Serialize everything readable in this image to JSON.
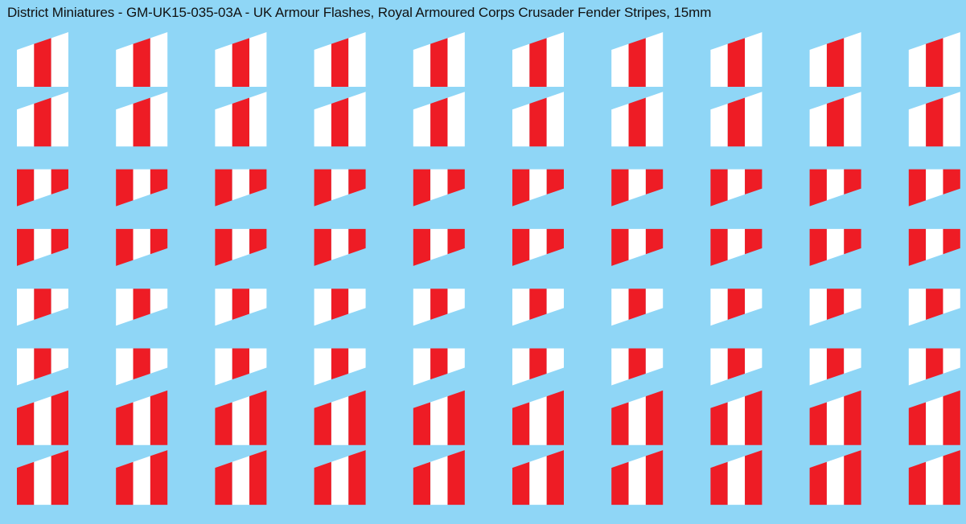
{
  "sheet": {
    "title": "District Miniatures - GM-UK15-035-03A - UK Armour Flashes, Royal Armoured Corps Crusader Fender Stripes, 15mm"
  },
  "colors": {
    "background": "#8fd6f6",
    "red": "#ee1c25",
    "white": "#ffffff",
    "text": "#111111"
  },
  "decals": {
    "columns": 10,
    "row_patterns": [
      "white-red-white-flip",
      "white-red-white-flip",
      "red-white-red",
      "red-white-red",
      "white-red-white",
      "white-red-white",
      "red-white-red-flip",
      "red-white-red-flip"
    ]
  }
}
